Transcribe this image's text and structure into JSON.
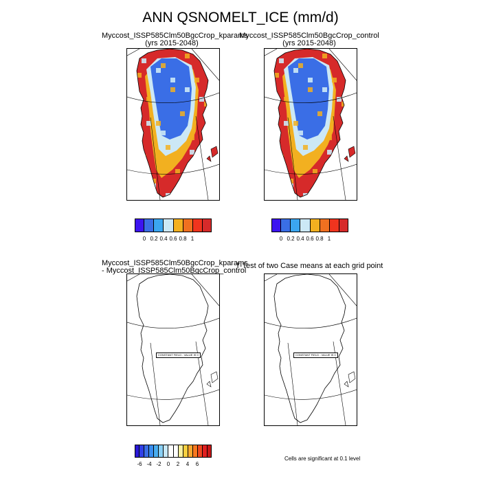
{
  "figure": {
    "title": "ANN QSNOMELT_ICE (mm/d)"
  },
  "panels": [
    {
      "line1": "Myccost_ISSP585Clm50BgcCrop_kparams",
      "line2": "(yrs 2015-2048)"
    },
    {
      "line1": "Myccost_ISSP585Clm50BgcCrop_control",
      "line2": "(yrs 2015-2048)"
    },
    {
      "line1": "Myccost_ISSP585Clm50BgcCrop_kparams",
      "line2": "- Myccost_ISSP585Clm50BgcCrop_control"
    },
    {
      "line1": "T-Test of two Case means at each grid point",
      "line2": ""
    }
  ],
  "constant_label": "CONSTANT FIELD - VALUE IS 0",
  "colorbars": {
    "field": {
      "colors": [
        "#3c14f0",
        "#3a6ee6",
        "#3ba6f0",
        "#cce8f5",
        "#f2b020",
        "#f07020",
        "#f0341e",
        "#d62a2a"
      ],
      "ticks": [
        "0",
        "0.2",
        "0.4",
        "0.6",
        "0.8",
        "1"
      ]
    },
    "diff": {
      "colors": [
        "#2a18d8",
        "#3040e6",
        "#3a6ee6",
        "#3a8ef0",
        "#4aaef0",
        "#8ad0f5",
        "#c8e8f8",
        "#ffffff",
        "#ffffff",
        "#f8f0a0",
        "#f8d040",
        "#f8a830",
        "#f87820",
        "#f04820",
        "#e02020",
        "#c81818"
      ],
      "ticks": [
        "-6",
        "-4",
        "-2",
        "0",
        "2",
        "4",
        "6"
      ]
    }
  },
  "significance_note": "Cells are significant at 0.1 level",
  "colors": {
    "land_edge": "#d62a2a",
    "interior": "#3a6ee6",
    "light": "#cce8f5",
    "orange": "#f2b020"
  }
}
